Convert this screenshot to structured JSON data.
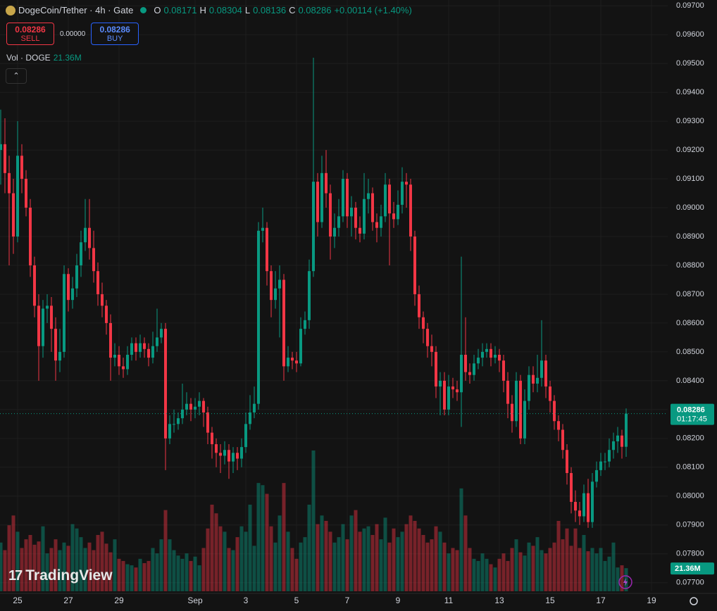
{
  "header": {
    "symbol": "DogeCoin/Tether · 4h · Gate",
    "o_label": "O",
    "o": "0.08171",
    "h_label": "H",
    "h": "0.08304",
    "l_label": "L",
    "l": "0.08136",
    "c_label": "C",
    "c": "0.08286",
    "change": "+0.00114 (+1.40%)"
  },
  "trade": {
    "sell_price": "0.08286",
    "sell": "SELL",
    "spread": "0.00000",
    "buy_price": "0.08286",
    "buy": "BUY"
  },
  "volume_legend": {
    "label": "Vol · DOGE",
    "value": "21.36M"
  },
  "brand": "TradingView",
  "chart_data": {
    "type": "candlestick",
    "up_color": "#089981",
    "down_color": "#f23645",
    "grid": true,
    "current_price_label": "0.08286",
    "countdown": "01:17:45",
    "volume_label": "21.36M",
    "ylim": [
      0.0767,
      0.0972
    ],
    "yticks": [
      {
        "value": 0.097,
        "label": "0.09700"
      },
      {
        "value": 0.096,
        "label": "0.09600"
      },
      {
        "value": 0.095,
        "label": "0.09500"
      },
      {
        "value": 0.094,
        "label": "0.09400"
      },
      {
        "value": 0.093,
        "label": "0.09300"
      },
      {
        "value": 0.092,
        "label": "0.09200"
      },
      {
        "value": 0.091,
        "label": "0.09100"
      },
      {
        "value": 0.09,
        "label": "0.09000"
      },
      {
        "value": 0.089,
        "label": "0.08900"
      },
      {
        "value": 0.088,
        "label": "0.08800"
      },
      {
        "value": 0.087,
        "label": "0.08700"
      },
      {
        "value": 0.086,
        "label": "0.08600"
      },
      {
        "value": 0.085,
        "label": "0.08500"
      },
      {
        "value": 0.084,
        "label": "0.08400"
      },
      {
        "value": 0.083,
        "label": "0.08300"
      },
      {
        "value": 0.082,
        "label": "0.08200"
      },
      {
        "value": 0.081,
        "label": "0.08100"
      },
      {
        "value": 0.08,
        "label": "0.08000"
      },
      {
        "value": 0.079,
        "label": "0.07900"
      },
      {
        "value": 0.078,
        "label": "0.07800"
      },
      {
        "value": 0.077,
        "label": "0.07700"
      }
    ],
    "categories": [
      null,
      null,
      null,
      null,
      "25",
      null,
      null,
      null,
      null,
      null,
      null,
      null,
      null,
      null,
      null,
      null,
      "27",
      null,
      null,
      null,
      null,
      null,
      null,
      null,
      null,
      null,
      null,
      null,
      "29",
      null,
      null,
      null,
      null,
      null,
      null,
      null,
      null,
      null,
      null,
      null,
      null,
      null,
      null,
      null,
      null,
      null,
      "Sep",
      null,
      null,
      null,
      null,
      null,
      null,
      null,
      null,
      null,
      null,
      null,
      "3",
      null,
      null,
      null,
      null,
      null,
      null,
      null,
      null,
      null,
      null,
      null,
      "5",
      null,
      null,
      null,
      null,
      null,
      null,
      null,
      null,
      null,
      null,
      null,
      "7",
      null,
      null,
      null,
      null,
      null,
      null,
      null,
      null,
      null,
      null,
      null,
      "9",
      null,
      null,
      null,
      null,
      null,
      null,
      null,
      null,
      null,
      null,
      null,
      "11",
      null,
      null,
      null,
      null,
      null,
      null,
      null,
      null,
      null,
      null,
      null,
      "13",
      null,
      null,
      null,
      null,
      null,
      null,
      null,
      null,
      null,
      null,
      null,
      "15",
      null,
      null,
      null,
      null,
      null,
      null,
      null,
      null,
      null,
      null,
      null,
      "17",
      null,
      null,
      null,
      null,
      null,
      null,
      null,
      null,
      null,
      null,
      null,
      "19",
      null,
      null,
      null
    ],
    "open": [
      0.092,
      0.0922,
      0.0912,
      0.0905,
      0.089,
      0.0918,
      0.091,
      0.09,
      0.088,
      0.0866,
      0.0852,
      0.0865,
      0.0866,
      0.0858,
      0.0847,
      0.085,
      0.0877,
      0.0868,
      0.0872,
      0.088,
      0.0888,
      0.0893,
      0.0886,
      0.0878,
      0.087,
      0.0866,
      0.086,
      0.0848,
      0.0849,
      0.0845,
      0.0844,
      0.0849,
      0.0853,
      0.085,
      0.0853,
      0.0851,
      0.0848,
      0.0852,
      0.0855,
      0.0858,
      0.082,
      0.0825,
      0.0825,
      0.0827,
      0.083,
      0.0832,
      0.083,
      0.0831,
      0.0833,
      0.0829,
      0.0822,
      0.0818,
      0.0815,
      0.0814,
      0.0816,
      0.0812,
      0.0815,
      0.0813,
      0.0817,
      0.0825,
      0.0829,
      0.0832,
      0.0892,
      0.0893,
      0.0878,
      0.0868,
      0.0872,
      0.0875,
      0.0845,
      0.0848,
      0.0847,
      0.0846,
      0.0858,
      0.0861,
      0.0878,
      0.0909,
      0.0895,
      0.0912,
      0.0905,
      0.089,
      0.0893,
      0.0897,
      0.091,
      0.0897,
      0.09,
      0.0893,
      0.0891,
      0.0903,
      0.0905,
      0.0895,
      0.0893,
      0.0897,
      0.0908,
      0.0898,
      0.0896,
      0.0901,
      0.0909,
      0.0908,
      0.089,
      0.087,
      0.0862,
      0.0858,
      0.0852,
      0.085,
      0.0838,
      0.084,
      0.083,
      0.0838,
      0.0837,
      0.0836,
      0.0849,
      0.0843,
      0.0842,
      0.0846,
      0.0848,
      0.085,
      0.0851,
      0.0848,
      0.0849,
      0.0847,
      0.084,
      0.0832,
      0.0826,
      0.084,
      0.082,
      0.0833,
      0.0842,
      0.0839,
      0.0841,
      0.0847,
      0.0838,
      0.0833,
      0.0826,
      0.0823,
      0.0816,
      0.0808,
      0.0798,
      0.0795,
      0.0793,
      0.0801,
      0.0791,
      0.0805,
      0.0809,
      0.0812,
      0.0812,
      0.0816,
      0.0819,
      0.0821,
      0.08171,
      null,
      null,
      null,
      null,
      null,
      null,
      null,
      null,
      null
    ],
    "high": [
      0.0934,
      0.0931,
      0.0918,
      0.091,
      0.093,
      0.0922,
      0.0913,
      0.0903,
      0.0883,
      0.087,
      0.0868,
      0.087,
      0.0869,
      0.0862,
      0.0858,
      0.088,
      0.0879,
      0.0876,
      0.0884,
      0.0892,
      0.0903,
      0.0903,
      0.0892,
      0.0881,
      0.0874,
      0.0868,
      0.0863,
      0.0853,
      0.0852,
      0.0848,
      0.0852,
      0.0855,
      0.0855,
      0.0856,
      0.0855,
      0.0853,
      0.0857,
      0.0865,
      0.086,
      0.086,
      0.0828,
      0.083,
      0.0829,
      0.0839,
      0.0836,
      0.0834,
      0.0834,
      0.0836,
      0.0834,
      0.0831,
      0.0824,
      0.082,
      0.0818,
      0.0819,
      0.0818,
      0.0817,
      0.0817,
      0.082,
      0.0829,
      0.0835,
      0.0838,
      0.0895,
      0.09,
      0.0895,
      0.088,
      0.0878,
      0.088,
      0.0877,
      0.0852,
      0.085,
      0.085,
      0.0862,
      0.0864,
      0.0882,
      0.0952,
      0.0912,
      0.0918,
      0.092,
      0.0908,
      0.0898,
      0.0903,
      0.0913,
      0.0912,
      0.0904,
      0.0902,
      0.0897,
      0.0912,
      0.091,
      0.0907,
      0.0898,
      0.0901,
      0.0912,
      0.091,
      0.0902,
      0.0906,
      0.0914,
      0.0912,
      0.091,
      0.0892,
      0.0873,
      0.0864,
      0.086,
      0.0856,
      0.0852,
      0.0843,
      0.0843,
      0.0842,
      0.0841,
      0.084,
      0.0883,
      0.0862,
      0.0846,
      0.0849,
      0.0851,
      0.0853,
      0.0853,
      0.0853,
      0.0852,
      0.0851,
      0.0849,
      0.0843,
      0.0835,
      0.0843,
      0.0842,
      0.0837,
      0.0845,
      0.0845,
      0.0849,
      0.0861,
      0.0849,
      0.084,
      0.0835,
      0.0828,
      0.0825,
      0.0818,
      0.081,
      0.0802,
      0.0798,
      0.0804,
      0.0806,
      0.0808,
      0.0812,
      0.0815,
      0.0815,
      0.082,
      0.0822,
      0.0824,
      0.0823,
      0.08304,
      null,
      null,
      null,
      null,
      null,
      null,
      null,
      null,
      null
    ],
    "low": [
      0.0908,
      0.0905,
      0.088,
      0.0884,
      0.0888,
      0.0905,
      0.0897,
      0.0876,
      0.0862,
      0.084,
      0.0848,
      0.086,
      0.085,
      0.084,
      0.0843,
      0.0848,
      0.0864,
      0.0865,
      0.0869,
      0.0876,
      0.0885,
      0.0882,
      0.0874,
      0.0866,
      0.0862,
      0.0856,
      0.084,
      0.0845,
      0.0842,
      0.0841,
      0.0842,
      0.0847,
      0.0847,
      0.0848,
      0.0848,
      0.0845,
      0.0846,
      0.085,
      0.0853,
      0.0809,
      0.0818,
      0.0822,
      0.0823,
      0.0825,
      0.0828,
      0.0826,
      0.0827,
      0.0828,
      0.0824,
      0.0818,
      0.0813,
      0.081,
      0.0808,
      0.0811,
      0.0806,
      0.0808,
      0.0809,
      0.081,
      0.0815,
      0.0823,
      0.0827,
      0.083,
      0.0888,
      0.0873,
      0.0862,
      0.0865,
      0.0855,
      0.084,
      0.0843,
      0.0844,
      0.0843,
      0.0845,
      0.0856,
      0.0858,
      0.0876,
      0.089,
      0.0893,
      0.09,
      0.0882,
      0.0886,
      0.089,
      0.0895,
      0.0893,
      0.089,
      0.0889,
      0.0888,
      0.0889,
      0.0898,
      0.0892,
      0.0888,
      0.089,
      0.0895,
      0.088,
      0.0893,
      0.0894,
      0.0898,
      0.09,
      0.0885,
      0.0866,
      0.0858,
      0.0853,
      0.0848,
      0.0845,
      0.0834,
      0.0828,
      0.0828,
      0.0828,
      0.0834,
      0.0833,
      0.0824,
      0.084,
      0.0839,
      0.084,
      0.0844,
      0.0845,
      0.0848,
      0.0845,
      0.0846,
      0.0843,
      0.0836,
      0.0827,
      0.0822,
      0.0824,
      0.0818,
      0.0818,
      0.083,
      0.0836,
      0.0836,
      0.0838,
      0.0834,
      0.0829,
      0.0823,
      0.0819,
      0.0813,
      0.0804,
      0.0794,
      0.0791,
      0.079,
      0.0791,
      0.0789,
      0.0789,
      0.0803,
      0.0807,
      0.0809,
      0.081,
      0.0813,
      0.0815,
      0.0813,
      0.08136,
      null,
      null,
      null,
      null,
      null,
      null,
      null,
      null,
      null
    ],
    "close": [
      0.0922,
      0.0912,
      0.0905,
      0.089,
      0.0918,
      0.091,
      0.09,
      0.088,
      0.0866,
      0.0852,
      0.0865,
      0.0866,
      0.0858,
      0.0847,
      0.085,
      0.0877,
      0.0868,
      0.0872,
      0.088,
      0.0888,
      0.0893,
      0.0886,
      0.0878,
      0.087,
      0.0866,
      0.086,
      0.0848,
      0.0849,
      0.0845,
      0.0844,
      0.0849,
      0.0853,
      0.085,
      0.0853,
      0.0851,
      0.0848,
      0.0852,
      0.0855,
      0.0858,
      0.082,
      0.0825,
      0.0825,
      0.0827,
      0.083,
      0.0832,
      0.083,
      0.0831,
      0.0833,
      0.0829,
      0.0822,
      0.0818,
      0.0815,
      0.0814,
      0.0816,
      0.0812,
      0.0815,
      0.0813,
      0.0817,
      0.0825,
      0.0829,
      0.0832,
      0.0892,
      0.0893,
      0.0878,
      0.0868,
      0.0872,
      0.0875,
      0.0845,
      0.0848,
      0.0847,
      0.0846,
      0.0858,
      0.0861,
      0.0878,
      0.0909,
      0.0895,
      0.0912,
      0.0905,
      0.089,
      0.0893,
      0.0897,
      0.091,
      0.0897,
      0.09,
      0.0893,
      0.0891,
      0.0903,
      0.0905,
      0.0895,
      0.0893,
      0.0897,
      0.0908,
      0.0898,
      0.0896,
      0.0901,
      0.0909,
      0.0908,
      0.089,
      0.087,
      0.0862,
      0.0858,
      0.0852,
      0.085,
      0.0838,
      0.084,
      0.083,
      0.0838,
      0.0837,
      0.0836,
      0.0849,
      0.0843,
      0.0842,
      0.0846,
      0.0848,
      0.085,
      0.0851,
      0.0848,
      0.0849,
      0.0847,
      0.084,
      0.0832,
      0.0826,
      0.084,
      0.082,
      0.0833,
      0.0842,
      0.0839,
      0.0841,
      0.0847,
      0.0838,
      0.0833,
      0.0826,
      0.0823,
      0.0816,
      0.0808,
      0.0798,
      0.0795,
      0.0793,
      0.0801,
      0.0791,
      0.0805,
      0.0809,
      0.0812,
      0.0812,
      0.0816,
      0.0819,
      0.0821,
      0.08171,
      0.08286,
      null,
      null,
      null,
      null,
      null,
      null,
      null,
      null,
      null
    ],
    "volume": [
      45,
      38,
      61,
      70,
      55,
      40,
      48,
      52,
      43,
      46,
      60,
      35,
      40,
      48,
      38,
      45,
      42,
      62,
      58,
      50,
      40,
      45,
      38,
      52,
      55,
      44,
      36,
      48,
      30,
      28,
      25,
      24,
      22,
      30,
      26,
      28,
      40,
      35,
      48,
      75,
      48,
      38,
      33,
      30,
      35,
      28,
      32,
      24,
      40,
      58,
      80,
      72,
      60,
      55,
      40,
      38,
      50,
      60,
      55,
      80,
      42,
      100,
      98,
      90,
      60,
      45,
      70,
      100,
      55,
      40,
      30,
      45,
      50,
      80,
      130,
      62,
      70,
      65,
      55,
      45,
      50,
      62,
      48,
      70,
      75,
      55,
      58,
      60,
      52,
      62,
      48,
      68,
      45,
      58,
      50,
      55,
      62,
      70,
      65,
      58,
      52,
      45,
      48,
      60,
      55,
      45,
      35,
      40,
      38,
      95,
      70,
      40,
      30,
      28,
      35,
      30,
      25,
      22,
      30,
      35,
      28,
      40,
      48,
      36,
      33,
      45,
      42,
      50,
      38,
      35,
      40,
      45,
      65,
      48,
      58,
      42,
      58,
      40,
      52,
      37,
      40,
      35,
      40,
      28,
      32,
      45,
      22,
      24,
      21.36,
      null,
      null,
      null,
      null,
      null,
      null,
      null,
      null,
      null
    ]
  }
}
